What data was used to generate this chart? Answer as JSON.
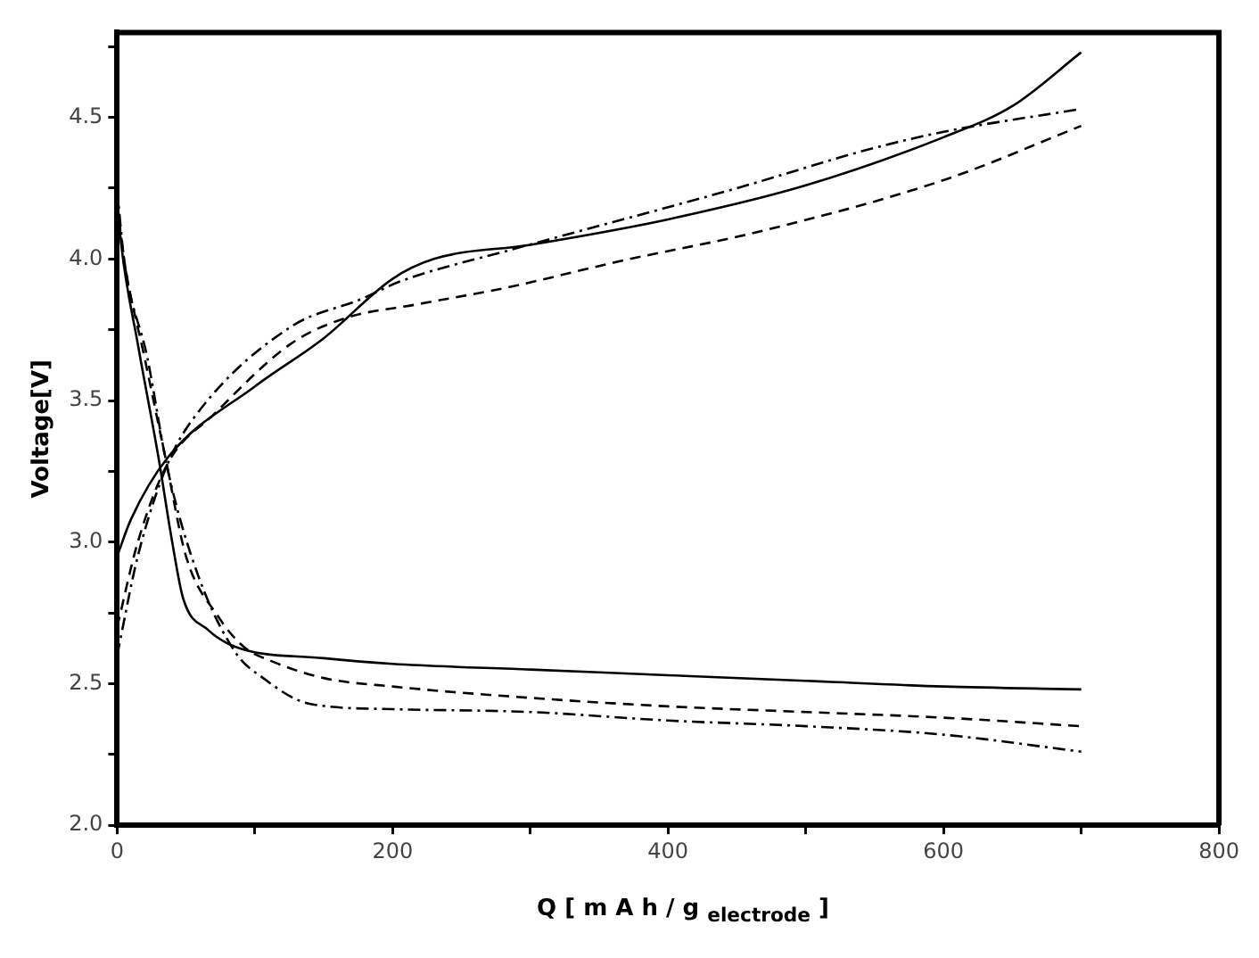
{
  "chart_data": {
    "type": "line",
    "xlabel": "Q [ m A h / g $_{electrode}$ ]",
    "ylabel": "Voltage[V]",
    "xlim": [
      0,
      800
    ],
    "ylim": [
      2.0,
      4.8
    ],
    "xticks": [
      0,
      {
        "value": 100,
        "label": null
      },
      200,
      {
        "value": 300,
        "label": null
      },
      400,
      {
        "value": 500,
        "label": null
      },
      600,
      {
        "value": 700,
        "label": null
      },
      800
    ],
    "yticks": [
      {
        "value": 2.0,
        "label": "2.0"
      },
      {
        "value": 2.25,
        "label": null
      },
      2.5,
      {
        "value": 2.75,
        "label": null
      },
      {
        "value": 3.0,
        "label": "3.0"
      },
      {
        "value": 3.25,
        "label": null
      },
      3.5,
      {
        "value": 3.75,
        "label": null
      },
      {
        "value": 4.0,
        "label": "4.0"
      },
      {
        "value": 4.25,
        "label": null
      },
      4.5,
      {
        "value": 4.75,
        "label": null
      }
    ],
    "grid": false,
    "legend": false,
    "marker": "none",
    "series": [
      {
        "color": "#000000",
        "line_style": "solid",
        "x": [
          0,
          10,
          37,
          100,
          150,
          200,
          230,
          300,
          400,
          500,
          600,
          650,
          700
        ],
        "values": [
          2.95,
          3.08,
          3.3,
          3.55,
          3.72,
          3.93,
          4.0,
          4.05,
          4.14,
          4.26,
          4.43,
          4.54,
          4.73
        ]
      },
      {
        "color": "#000000",
        "line_style": "dotted",
        "x": [
          0,
          15,
          37,
          59,
          126,
          178,
          205,
          284,
          337,
          450,
          548,
          601,
          700
        ],
        "values": [
          2.6,
          2.95,
          3.28,
          3.46,
          3.76,
          3.86,
          3.92,
          4.03,
          4.1,
          4.25,
          4.39,
          4.45,
          4.53
        ]
      },
      {
        "color": "#000000",
        "line_style": "dashed",
        "x": [
          0,
          15,
          37,
          70,
          126,
          165,
          218,
          284,
          363,
          469,
          601,
          700
        ],
        "values": [
          2.7,
          3.0,
          3.28,
          3.45,
          3.7,
          3.79,
          3.84,
          3.9,
          3.99,
          4.1,
          4.28,
          4.47
        ]
      },
      {
        "color": "#000000",
        "line_style": "solid",
        "x": [
          0,
          3,
          15,
          30,
          40,
          48,
          66,
          86,
          150,
          200,
          300,
          400,
          500,
          600,
          700
        ],
        "values": [
          4.22,
          4.05,
          3.7,
          3.3,
          3.0,
          2.8,
          2.69,
          2.63,
          2.59,
          2.57,
          2.55,
          2.53,
          2.51,
          2.49,
          2.48
        ]
      },
      {
        "color": "#000000",
        "line_style": "dashed",
        "x": [
          0,
          5,
          20,
          35,
          50,
          73,
          92,
          112,
          150,
          200,
          300,
          400,
          500,
          600,
          700
        ],
        "values": [
          4.2,
          4.0,
          3.65,
          3.3,
          2.95,
          2.74,
          2.63,
          2.58,
          2.52,
          2.49,
          2.45,
          2.42,
          2.4,
          2.38,
          2.35
        ]
      },
      {
        "color": "#000000",
        "line_style": "dotted",
        "x": [
          0,
          5,
          22,
          37,
          59,
          86,
          106,
          139,
          200,
          300,
          400,
          500,
          600,
          700
        ],
        "values": [
          4.25,
          4.0,
          3.65,
          3.25,
          2.88,
          2.61,
          2.52,
          2.43,
          2.41,
          2.4,
          2.37,
          2.35,
          2.32,
          2.26
        ]
      }
    ]
  }
}
